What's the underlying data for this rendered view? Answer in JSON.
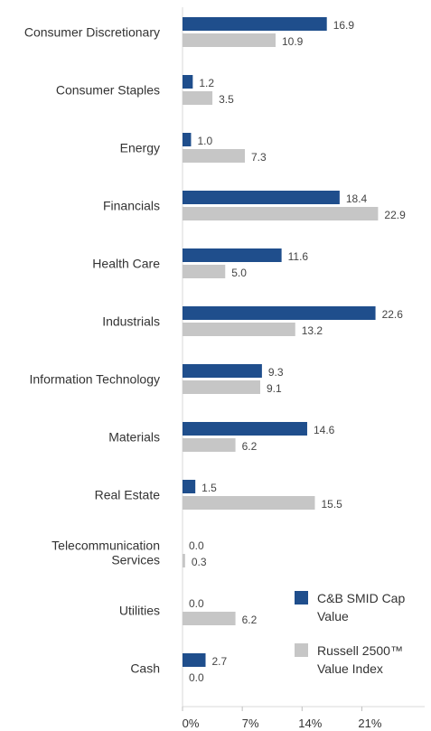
{
  "chart_data": {
    "type": "bar",
    "orientation": "horizontal",
    "categories": [
      "Consumer Discretionary",
      "Consumer Staples",
      "Energy",
      "Financials",
      "Health Care",
      "Industrials",
      "Information Technology",
      "Materials",
      "Real Estate",
      "Telecommunication\nServices",
      "Utilities",
      "Cash"
    ],
    "series": [
      {
        "name": "C&B SMID Cap\nValue",
        "color": "#1f4e8c",
        "values": [
          16.9,
          1.2,
          1.0,
          18.4,
          11.6,
          22.6,
          9.3,
          14.6,
          1.5,
          0.0,
          0.0,
          2.7
        ],
        "value_labels": [
          "16.9",
          "1.2",
          "1.0",
          "18.4",
          "11.6",
          "22.6",
          "9.3",
          "14.6",
          "1.5",
          "0.0",
          "0.0",
          "2.7"
        ]
      },
      {
        "name": "Russell 2500™\nValue Index",
        "color": "#c6c6c6",
        "values": [
          10.9,
          3.5,
          7.3,
          22.9,
          5.0,
          13.2,
          9.1,
          6.2,
          15.5,
          0.3,
          6.2,
          0.0
        ],
        "value_labels": [
          "10.9",
          "3.5",
          "7.3",
          "22.9",
          "5.0",
          "13.2",
          "9.1",
          "6.2",
          "15.5",
          "0.3",
          "6.2",
          "0.0"
        ]
      }
    ],
    "x_ticks": [
      0,
      7,
      14,
      21
    ],
    "x_tick_labels": [
      "0%",
      "7%",
      "14%",
      "21%"
    ],
    "xlim": [
      0,
      26
    ],
    "grid": false,
    "legend_position": "bottom-right",
    "title": "",
    "xlabel": "",
    "ylabel": ""
  }
}
